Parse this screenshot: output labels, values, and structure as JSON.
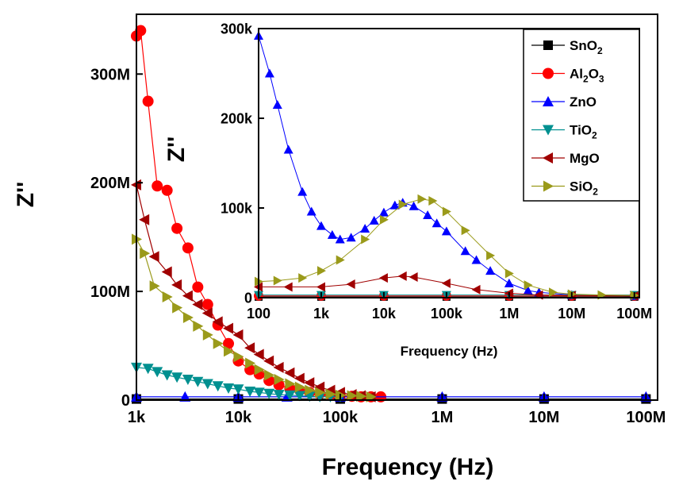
{
  "chart_data": [
    {
      "type": "scatter",
      "role": "main",
      "xlabel": "Frequency (Hz)",
      "ylabel": "Z''",
      "x_scale": "log",
      "xlim": [
        1000,
        130000000
      ],
      "ylim": [
        0,
        355000000
      ],
      "x_ticks": [
        {
          "value": 1000,
          "label": "1k"
        },
        {
          "value": 10000,
          "label": "10k"
        },
        {
          "value": 100000,
          "label": "100k"
        },
        {
          "value": 1000000,
          "label": "1M"
        },
        {
          "value": 10000000,
          "label": "10M"
        },
        {
          "value": 100000000,
          "label": "100M"
        }
      ],
      "y_ticks": [
        {
          "value": 0,
          "label": "0"
        },
        {
          "value": 100000000,
          "label": "100M"
        },
        {
          "value": 200000000,
          "label": "200M"
        },
        {
          "value": 300000000,
          "label": "300M"
        }
      ],
      "series": [
        {
          "name": "SnO2",
          "color": "#000000",
          "marker": "square",
          "x": [
            1000,
            10000,
            100000,
            1000000,
            10000000,
            100000000
          ],
          "y": [
            1000000,
            1000000,
            1000000,
            1000000,
            1000000,
            1000000
          ]
        },
        {
          "name": "Al2O3",
          "color": "#ff0000",
          "marker": "circle",
          "x": [
            1000,
            1100,
            1300,
            1600,
            2000,
            2500,
            3200,
            4000,
            5000,
            6300,
            8000,
            10000,
            13000,
            16000,
            20000,
            25000,
            32000,
            40000,
            50000,
            63000,
            80000,
            100000,
            130000,
            160000,
            200000,
            250000
          ],
          "y": [
            335000000,
            340000000,
            275000000,
            197000000,
            193000000,
            158000000,
            140000000,
            104000000,
            88000000,
            69000000,
            52000000,
            36000000,
            28000000,
            24000000,
            18000000,
            14000000,
            11000000,
            9000000,
            7000000,
            6000000,
            5000000,
            4000000,
            3500000,
            3000000,
            3000000,
            3000000
          ]
        },
        {
          "name": "ZnO",
          "color": "#0000ff",
          "marker": "triangle-up",
          "x": [
            1000,
            3000,
            10000,
            30000,
            100000,
            1000000,
            10000000,
            100000000
          ],
          "y": [
            3000000,
            3000000,
            3000000,
            3000000,
            3000000,
            3000000,
            3000000,
            3000000
          ]
        },
        {
          "name": "TiO2",
          "color": "#009090",
          "marker": "triangle-down",
          "x": [
            1000,
            1300,
            1600,
            2000,
            2500,
            3200,
            4000,
            5000,
            6300,
            8000,
            10000,
            13000,
            16000,
            20000,
            25000,
            32000,
            40000,
            50000,
            63000,
            80000,
            100000
          ],
          "y": [
            30000000,
            29000000,
            26000000,
            23000000,
            21000000,
            19000000,
            17000000,
            15000000,
            13000000,
            11000000,
            10000000,
            8000000,
            7000000,
            6000000,
            5000000,
            4500000,
            4000000,
            3500000,
            3000000,
            3000000,
            3000000
          ]
        },
        {
          "name": "MgO",
          "color": "#a00000",
          "marker": "triangle-left",
          "x": [
            1000,
            1200,
            1500,
            2000,
            2500,
            3200,
            4000,
            5000,
            6300,
            8000,
            10000,
            13000,
            16000,
            20000,
            25000,
            32000,
            40000,
            50000,
            63000,
            80000,
            100000,
            130000,
            160000,
            200000
          ],
          "y": [
            198000000,
            166000000,
            132000000,
            118000000,
            106000000,
            96000000,
            88000000,
            80000000,
            72000000,
            66000000,
            60000000,
            48000000,
            42000000,
            36000000,
            30000000,
            25000000,
            20000000,
            16000000,
            12000000,
            9000000,
            7000000,
            5000000,
            4000000,
            3000000
          ]
        },
        {
          "name": "SiO2",
          "color": "#9a9a1a",
          "marker": "triangle-right",
          "x": [
            1000,
            1200,
            1500,
            2000,
            2500,
            3200,
            4000,
            5000,
            6300,
            8000,
            10000,
            13000,
            16000,
            20000,
            25000,
            32000,
            40000,
            50000,
            63000,
            80000,
            100000,
            130000,
            160000,
            200000
          ],
          "y": [
            148000000,
            135000000,
            105000000,
            95000000,
            85000000,
            76000000,
            68000000,
            60000000,
            52000000,
            45000000,
            40000000,
            34000000,
            28000000,
            23000000,
            19000000,
            15000000,
            12000000,
            9000000,
            7000000,
            5500000,
            4500000,
            4000000,
            3500000,
            3000000
          ]
        }
      ]
    },
    {
      "type": "scatter",
      "role": "inset",
      "xlabel": "Frequency (Hz)",
      "ylabel": "Z''",
      "x_scale": "log",
      "xlim": [
        100,
        120000000
      ],
      "ylim": [
        0,
        300000
      ],
      "x_ticks": [
        {
          "value": 100,
          "label": "100"
        },
        {
          "value": 1000,
          "label": "1k"
        },
        {
          "value": 10000,
          "label": "10k"
        },
        {
          "value": 100000,
          "label": "100k"
        },
        {
          "value": 1000000,
          "label": "1M"
        },
        {
          "value": 10000000,
          "label": "10M"
        },
        {
          "value": 100000000,
          "label": "100M"
        }
      ],
      "y_ticks": [
        {
          "value": 0,
          "label": "0"
        },
        {
          "value": 100000,
          "label": "100k"
        },
        {
          "value": 200000,
          "label": "200k"
        },
        {
          "value": 300000,
          "label": "300k"
        }
      ],
      "series": [
        {
          "name": "SnO2",
          "color": "#000000",
          "marker": "square",
          "x": [
            100,
            1000,
            10000,
            100000,
            1000000,
            10000000,
            100000000
          ],
          "y": [
            1000,
            1000,
            1000,
            1000,
            1000,
            1000,
            1000
          ]
        },
        {
          "name": "Al2O3",
          "color": "#ff0000",
          "marker": "circle",
          "x": [
            100,
            1000,
            10000,
            100000,
            1000000,
            10000000,
            100000000
          ],
          "y": [
            2000,
            2000,
            2000,
            2000,
            2000,
            2000,
            2000
          ]
        },
        {
          "name": "ZnO",
          "color": "#0000ff",
          "marker": "triangle-up",
          "x": [
            100,
            150,
            200,
            300,
            500,
            700,
            1000,
            1500,
            2000,
            3000,
            5000,
            7000,
            10000,
            15000,
            20000,
            30000,
            50000,
            70000,
            100000,
            200000,
            300000,
            500000,
            1000000,
            2000000,
            3000000,
            10000000,
            100000000
          ],
          "y": [
            292000,
            250000,
            215000,
            165000,
            118000,
            96000,
            80000,
            70000,
            65000,
            67000,
            77000,
            86000,
            95000,
            103000,
            106000,
            102000,
            92000,
            83000,
            74000,
            52000,
            42000,
            30000,
            16000,
            8000,
            6000,
            3000,
            2000
          ]
        },
        {
          "name": "TiO2",
          "color": "#009090",
          "marker": "triangle-down",
          "x": [
            100,
            1000,
            10000,
            100000,
            1000000,
            10000000,
            100000000
          ],
          "y": [
            3000,
            3000,
            3000,
            3000,
            3000,
            3000,
            3000
          ]
        },
        {
          "name": "MgO",
          "color": "#a00000",
          "marker": "triangle-left",
          "x": [
            100,
            300,
            1000,
            3000,
            10000,
            20000,
            30000,
            100000,
            300000,
            1000000,
            3000000,
            10000000,
            100000000
          ],
          "y": [
            12000,
            12000,
            12000,
            15000,
            22000,
            24000,
            23000,
            16000,
            9000,
            5000,
            3000,
            2500,
            2000
          ]
        },
        {
          "name": "SiO2",
          "color": "#9a9a1a",
          "marker": "triangle-right",
          "x": [
            100,
            200,
            500,
            1000,
            2000,
            5000,
            10000,
            20000,
            40000,
            60000,
            100000,
            200000,
            500000,
            1000000,
            2000000,
            5000000,
            10000000,
            30000000,
            100000000
          ],
          "y": [
            18000,
            19000,
            22000,
            30000,
            42000,
            65000,
            87000,
            104000,
            110000,
            108000,
            96000,
            75000,
            47000,
            27000,
            14000,
            6000,
            4000,
            3000,
            2500
          ]
        }
      ]
    }
  ],
  "legend": [
    {
      "base": "SnO",
      "parts": [
        {
          "t": "SnO"
        },
        {
          "t": "2",
          "sub": true
        }
      ]
    },
    {
      "base": "Al2O3",
      "parts": [
        {
          "t": "Al"
        },
        {
          "t": "2",
          "sub": true
        },
        {
          "t": "O"
        },
        {
          "t": "3",
          "sub": true
        }
      ]
    },
    {
      "base": "ZnO",
      "parts": [
        {
          "t": "ZnO"
        }
      ]
    },
    {
      "base": "TiO2",
      "parts": [
        {
          "t": "TiO"
        },
        {
          "t": "2",
          "sub": true
        }
      ]
    },
    {
      "base": "MgO",
      "parts": [
        {
          "t": "MgO"
        }
      ]
    },
    {
      "base": "SiO2",
      "parts": [
        {
          "t": "SiO"
        },
        {
          "t": "2",
          "sub": true
        }
      ]
    }
  ]
}
